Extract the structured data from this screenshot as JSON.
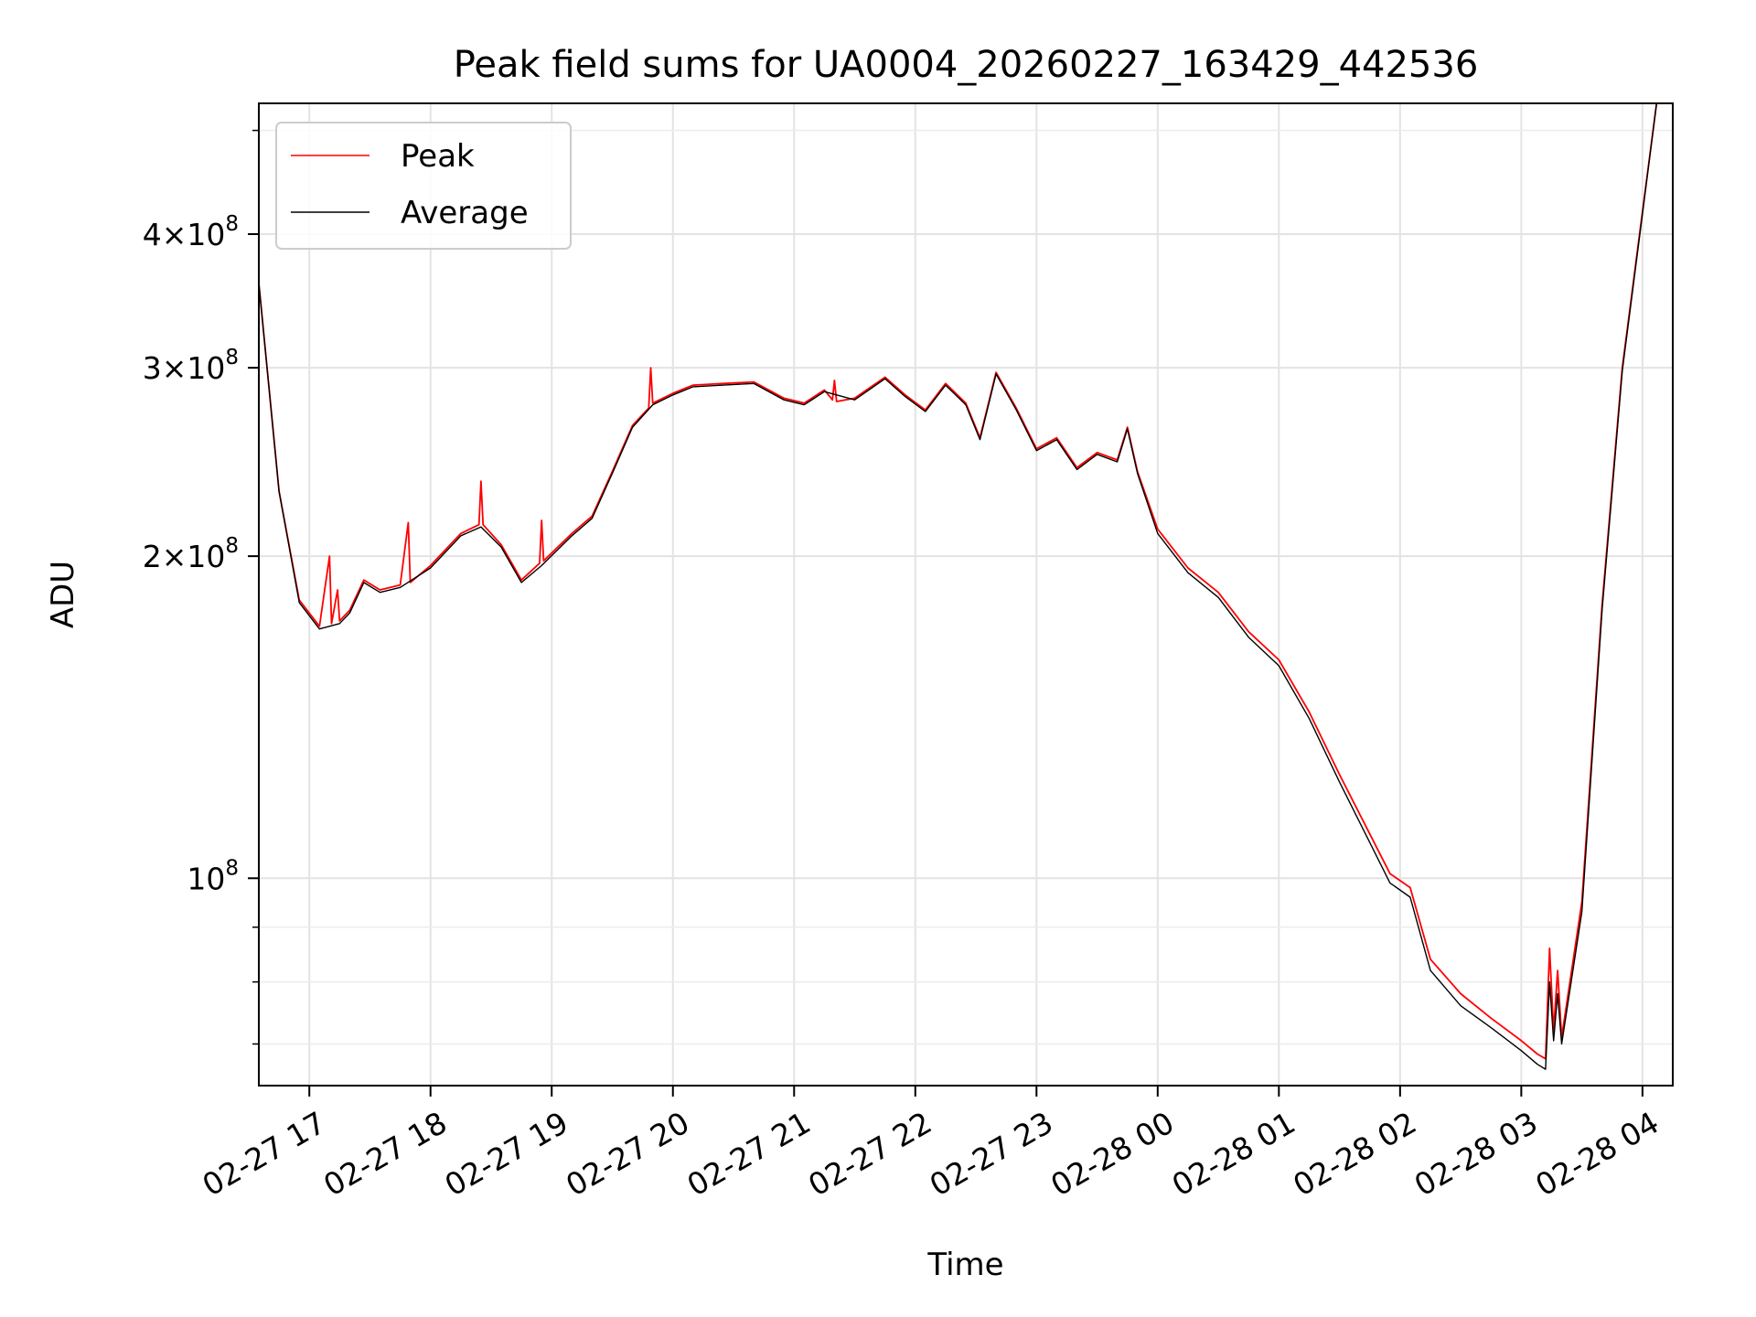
{
  "chart_data": {
    "type": "line",
    "title": "Peak field sums for UA0004_20260227_163429_442536",
    "xlabel": "Time",
    "ylabel": "ADU",
    "x_scale": "time",
    "y_scale": "log",
    "xlim": [
      "2026-02-27T16:35",
      "2026-02-28T04:15"
    ],
    "ylim": [
      64000000,
      530000000
    ],
    "x_ticks": [
      {
        "t": "2026-02-27T17:00",
        "label": "02-27 17"
      },
      {
        "t": "2026-02-27T18:00",
        "label": "02-27 18"
      },
      {
        "t": "2026-02-27T19:00",
        "label": "02-27 19"
      },
      {
        "t": "2026-02-27T20:00",
        "label": "02-27 20"
      },
      {
        "t": "2026-02-27T21:00",
        "label": "02-27 21"
      },
      {
        "t": "2026-02-27T22:00",
        "label": "02-27 22"
      },
      {
        "t": "2026-02-27T23:00",
        "label": "02-27 23"
      },
      {
        "t": "2026-02-28T00:00",
        "label": "02-28 00"
      },
      {
        "t": "2026-02-28T01:00",
        "label": "02-28 01"
      },
      {
        "t": "2026-02-28T02:00",
        "label": "02-28 02"
      },
      {
        "t": "2026-02-28T03:00",
        "label": "02-28 03"
      },
      {
        "t": "2026-02-28T04:00",
        "label": "02-28 04"
      }
    ],
    "y_major_ticks": [
      {
        "v": 100000000,
        "base": "10",
        "exp": "8",
        "coef": ""
      },
      {
        "v": 200000000,
        "base": "10",
        "exp": "8",
        "coef": "2"
      },
      {
        "v": 300000000,
        "base": "10",
        "exp": "8",
        "coef": "3"
      },
      {
        "v": 400000000,
        "base": "10",
        "exp": "8",
        "coef": "4"
      }
    ],
    "y_minor_ticks": [
      70000000,
      80000000,
      90000000,
      500000000
    ],
    "grid": true,
    "legend_position": "upper-left",
    "series": [
      {
        "name": "Peak",
        "color": "#ff0000",
        "points": [
          [
            "2026-02-27T16:35",
            360000000
          ],
          [
            "2026-02-27T16:45",
            230000000
          ],
          [
            "2026-02-27T16:55",
            182000000
          ],
          [
            "2026-02-27T17:05",
            172000000
          ],
          [
            "2026-02-27T17:10",
            200000000
          ],
          [
            "2026-02-27T17:11",
            173000000
          ],
          [
            "2026-02-27T17:14",
            186000000
          ],
          [
            "2026-02-27T17:15",
            174000000
          ],
          [
            "2026-02-27T17:20",
            178000000
          ],
          [
            "2026-02-27T17:27",
            190000000
          ],
          [
            "2026-02-27T17:35",
            186000000
          ],
          [
            "2026-02-27T17:45",
            188000000
          ],
          [
            "2026-02-27T17:49",
            215000000
          ],
          [
            "2026-02-27T17:50",
            189000000
          ],
          [
            "2026-02-27T18:00",
            196000000
          ],
          [
            "2026-02-27T18:15",
            210000000
          ],
          [
            "2026-02-27T18:24",
            214000000
          ],
          [
            "2026-02-27T18:25",
            235000000
          ],
          [
            "2026-02-27T18:26",
            214000000
          ],
          [
            "2026-02-27T18:35",
            205000000
          ],
          [
            "2026-02-27T18:45",
            190000000
          ],
          [
            "2026-02-27T18:54",
            197000000
          ],
          [
            "2026-02-27T18:55",
            216000000
          ],
          [
            "2026-02-27T18:56",
            198000000
          ],
          [
            "2026-02-27T19:10",
            210000000
          ],
          [
            "2026-02-27T19:20",
            218000000
          ],
          [
            "2026-02-27T19:30",
            240000000
          ],
          [
            "2026-02-27T19:40",
            265000000
          ],
          [
            "2026-02-27T19:48",
            275000000
          ],
          [
            "2026-02-27T19:49",
            300000000
          ],
          [
            "2026-02-27T19:50",
            278000000
          ],
          [
            "2026-02-27T20:00",
            284000000
          ],
          [
            "2026-02-27T20:10",
            289000000
          ],
          [
            "2026-02-27T20:25",
            290000000
          ],
          [
            "2026-02-27T20:40",
            291000000
          ],
          [
            "2026-02-27T20:55",
            281000000
          ],
          [
            "2026-02-27T21:05",
            278000000
          ],
          [
            "2026-02-27T21:15",
            286000000
          ],
          [
            "2026-02-27T21:19",
            280000000
          ],
          [
            "2026-02-27T21:20",
            292000000
          ],
          [
            "2026-02-27T21:21",
            279000000
          ],
          [
            "2026-02-27T21:30",
            281000000
          ],
          [
            "2026-02-27T21:45",
            294000000
          ],
          [
            "2026-02-27T21:55",
            283000000
          ],
          [
            "2026-02-27T22:05",
            274000000
          ],
          [
            "2026-02-27T22:15",
            290000000
          ],
          [
            "2026-02-27T22:25",
            278000000
          ],
          [
            "2026-02-27T22:32",
            258000000
          ],
          [
            "2026-02-27T22:40",
            297000000
          ],
          [
            "2026-02-27T22:50",
            275000000
          ],
          [
            "2026-02-27T23:00",
            252000000
          ],
          [
            "2026-02-27T23:10",
            258000000
          ],
          [
            "2026-02-27T23:20",
            242000000
          ],
          [
            "2026-02-27T23:30",
            250000000
          ],
          [
            "2026-02-27T23:40",
            246000000
          ],
          [
            "2026-02-27T23:45",
            264000000
          ],
          [
            "2026-02-27T23:50",
            240000000
          ],
          [
            "2026-02-28T00:00",
            212000000
          ],
          [
            "2026-02-28T00:15",
            195000000
          ],
          [
            "2026-02-28T00:30",
            185000000
          ],
          [
            "2026-02-28T00:45",
            170000000
          ],
          [
            "2026-02-28T01:00",
            160000000
          ],
          [
            "2026-02-28T01:15",
            143000000
          ],
          [
            "2026-02-28T01:30",
            125000000
          ],
          [
            "2026-02-28T01:45",
            110000000
          ],
          [
            "2026-02-28T01:55",
            101000000
          ],
          [
            "2026-02-28T02:05",
            98000000
          ],
          [
            "2026-02-28T02:15",
            84000000
          ],
          [
            "2026-02-28T02:30",
            78000000
          ],
          [
            "2026-02-28T02:45",
            74000000
          ],
          [
            "2026-02-28T03:00",
            70500000
          ],
          [
            "2026-02-28T03:08",
            68500000
          ],
          [
            "2026-02-28T03:12",
            67800000
          ],
          [
            "2026-02-28T03:14",
            86000000
          ],
          [
            "2026-02-28T03:16",
            72000000
          ],
          [
            "2026-02-28T03:18",
            82000000
          ],
          [
            "2026-02-28T03:20",
            71000000
          ],
          [
            "2026-02-28T03:30",
            95000000
          ],
          [
            "2026-02-28T03:40",
            180000000
          ],
          [
            "2026-02-28T03:50",
            300000000
          ],
          [
            "2026-02-28T04:00",
            420000000
          ],
          [
            "2026-02-28T04:07",
            530000000
          ]
        ]
      },
      {
        "name": "Average",
        "color": "#000000",
        "points": [
          [
            "2026-02-27T16:35",
            360000000
          ],
          [
            "2026-02-27T16:45",
            230000000
          ],
          [
            "2026-02-27T16:55",
            181000000
          ],
          [
            "2026-02-27T17:05",
            171000000
          ],
          [
            "2026-02-27T17:15",
            173000000
          ],
          [
            "2026-02-27T17:20",
            177000000
          ],
          [
            "2026-02-27T17:27",
            189000000
          ],
          [
            "2026-02-27T17:35",
            185000000
          ],
          [
            "2026-02-27T17:45",
            187000000
          ],
          [
            "2026-02-27T18:00",
            195000000
          ],
          [
            "2026-02-27T18:15",
            209000000
          ],
          [
            "2026-02-27T18:25",
            213000000
          ],
          [
            "2026-02-27T18:35",
            204000000
          ],
          [
            "2026-02-27T18:45",
            189000000
          ],
          [
            "2026-02-27T18:55",
            196000000
          ],
          [
            "2026-02-27T19:10",
            209000000
          ],
          [
            "2026-02-27T19:20",
            217000000
          ],
          [
            "2026-02-27T19:30",
            239000000
          ],
          [
            "2026-02-27T19:40",
            264000000
          ],
          [
            "2026-02-27T19:50",
            277000000
          ],
          [
            "2026-02-27T20:00",
            283000000
          ],
          [
            "2026-02-27T20:10",
            288000000
          ],
          [
            "2026-02-27T20:25",
            289000000
          ],
          [
            "2026-02-27T20:40",
            290000000
          ],
          [
            "2026-02-27T20:55",
            280000000
          ],
          [
            "2026-02-27T21:05",
            277000000
          ],
          [
            "2026-02-27T21:15",
            285000000
          ],
          [
            "2026-02-27T21:30",
            280000000
          ],
          [
            "2026-02-27T21:45",
            293000000
          ],
          [
            "2026-02-27T21:55",
            282000000
          ],
          [
            "2026-02-27T22:05",
            273000000
          ],
          [
            "2026-02-27T22:15",
            289000000
          ],
          [
            "2026-02-27T22:25",
            277000000
          ],
          [
            "2026-02-27T22:32",
            257000000
          ],
          [
            "2026-02-27T22:40",
            296000000
          ],
          [
            "2026-02-27T22:50",
            274000000
          ],
          [
            "2026-02-27T23:00",
            251000000
          ],
          [
            "2026-02-27T23:10",
            257000000
          ],
          [
            "2026-02-27T23:20",
            241000000
          ],
          [
            "2026-02-27T23:30",
            249000000
          ],
          [
            "2026-02-27T23:40",
            245000000
          ],
          [
            "2026-02-27T23:45",
            263000000
          ],
          [
            "2026-02-27T23:50",
            239000000
          ],
          [
            "2026-02-28T00:00",
            210000000
          ],
          [
            "2026-02-28T00:15",
            193000000
          ],
          [
            "2026-02-28T00:30",
            183000000
          ],
          [
            "2026-02-28T00:45",
            168000000
          ],
          [
            "2026-02-28T01:00",
            158000000
          ],
          [
            "2026-02-28T01:15",
            141000000
          ],
          [
            "2026-02-28T01:30",
            123000000
          ],
          [
            "2026-02-28T01:45",
            108000000
          ],
          [
            "2026-02-28T01:55",
            99000000
          ],
          [
            "2026-02-28T02:05",
            96000000
          ],
          [
            "2026-02-28T02:15",
            82000000
          ],
          [
            "2026-02-28T02:30",
            76000000
          ],
          [
            "2026-02-28T02:45",
            72500000
          ],
          [
            "2026-02-28T03:00",
            69000000
          ],
          [
            "2026-02-28T03:08",
            67000000
          ],
          [
            "2026-02-28T03:12",
            66300000
          ],
          [
            "2026-02-28T03:14",
            80000000
          ],
          [
            "2026-02-28T03:16",
            70500000
          ],
          [
            "2026-02-28T03:18",
            78000000
          ],
          [
            "2026-02-28T03:20",
            70000000
          ],
          [
            "2026-02-28T03:30",
            93000000
          ],
          [
            "2026-02-28T03:40",
            178000000
          ],
          [
            "2026-02-28T03:50",
            298000000
          ],
          [
            "2026-02-28T04:00",
            418000000
          ],
          [
            "2026-02-28T04:07",
            530000000
          ]
        ]
      }
    ]
  }
}
